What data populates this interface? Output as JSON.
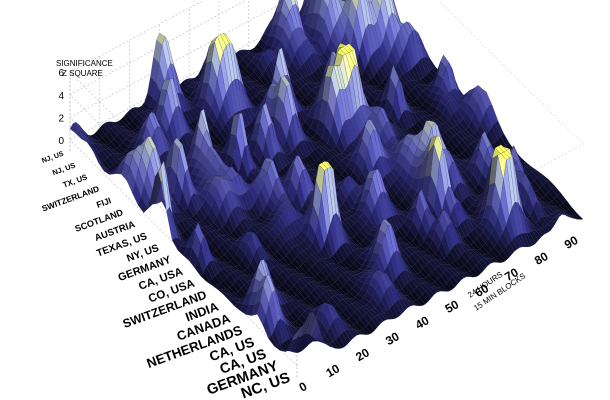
{
  "chart_data": {
    "type": "surface3d",
    "title": "",
    "zlabel": [
      "SIGNIFICANCE",
      "Z SQUARE"
    ],
    "xlabel": [
      "24 HOURS",
      "15 MIN BLOCKS"
    ],
    "zlim": [
      -1,
      6
    ],
    "z_ticks": [
      "6",
      "4",
      "2",
      "0"
    ],
    "xlim": [
      0,
      96
    ],
    "x_ticks": [
      "0",
      "10",
      "20",
      "30",
      "40",
      "50",
      "60",
      "70",
      "80",
      "90"
    ],
    "categories": [
      "NC, US",
      "GERMANY",
      "CA, US",
      "CA, US",
      "NETHERLANDS",
      "CANADA",
      "INDIA",
      "SWITZERLAND",
      "CO, USA",
      "CA, USA",
      "GERMANY",
      "NY, US",
      "TEXAS, US",
      "AUSTRIA",
      "SCOTLAND",
      "FIJI",
      "SWITZERLAND",
      "TX, US",
      "NJ, US",
      "NJ, US"
    ],
    "grid": true,
    "colormap": [
      "#000000",
      "#26266e",
      "#5a5cae",
      "#9aa6c2",
      "#ffff66"
    ]
  }
}
